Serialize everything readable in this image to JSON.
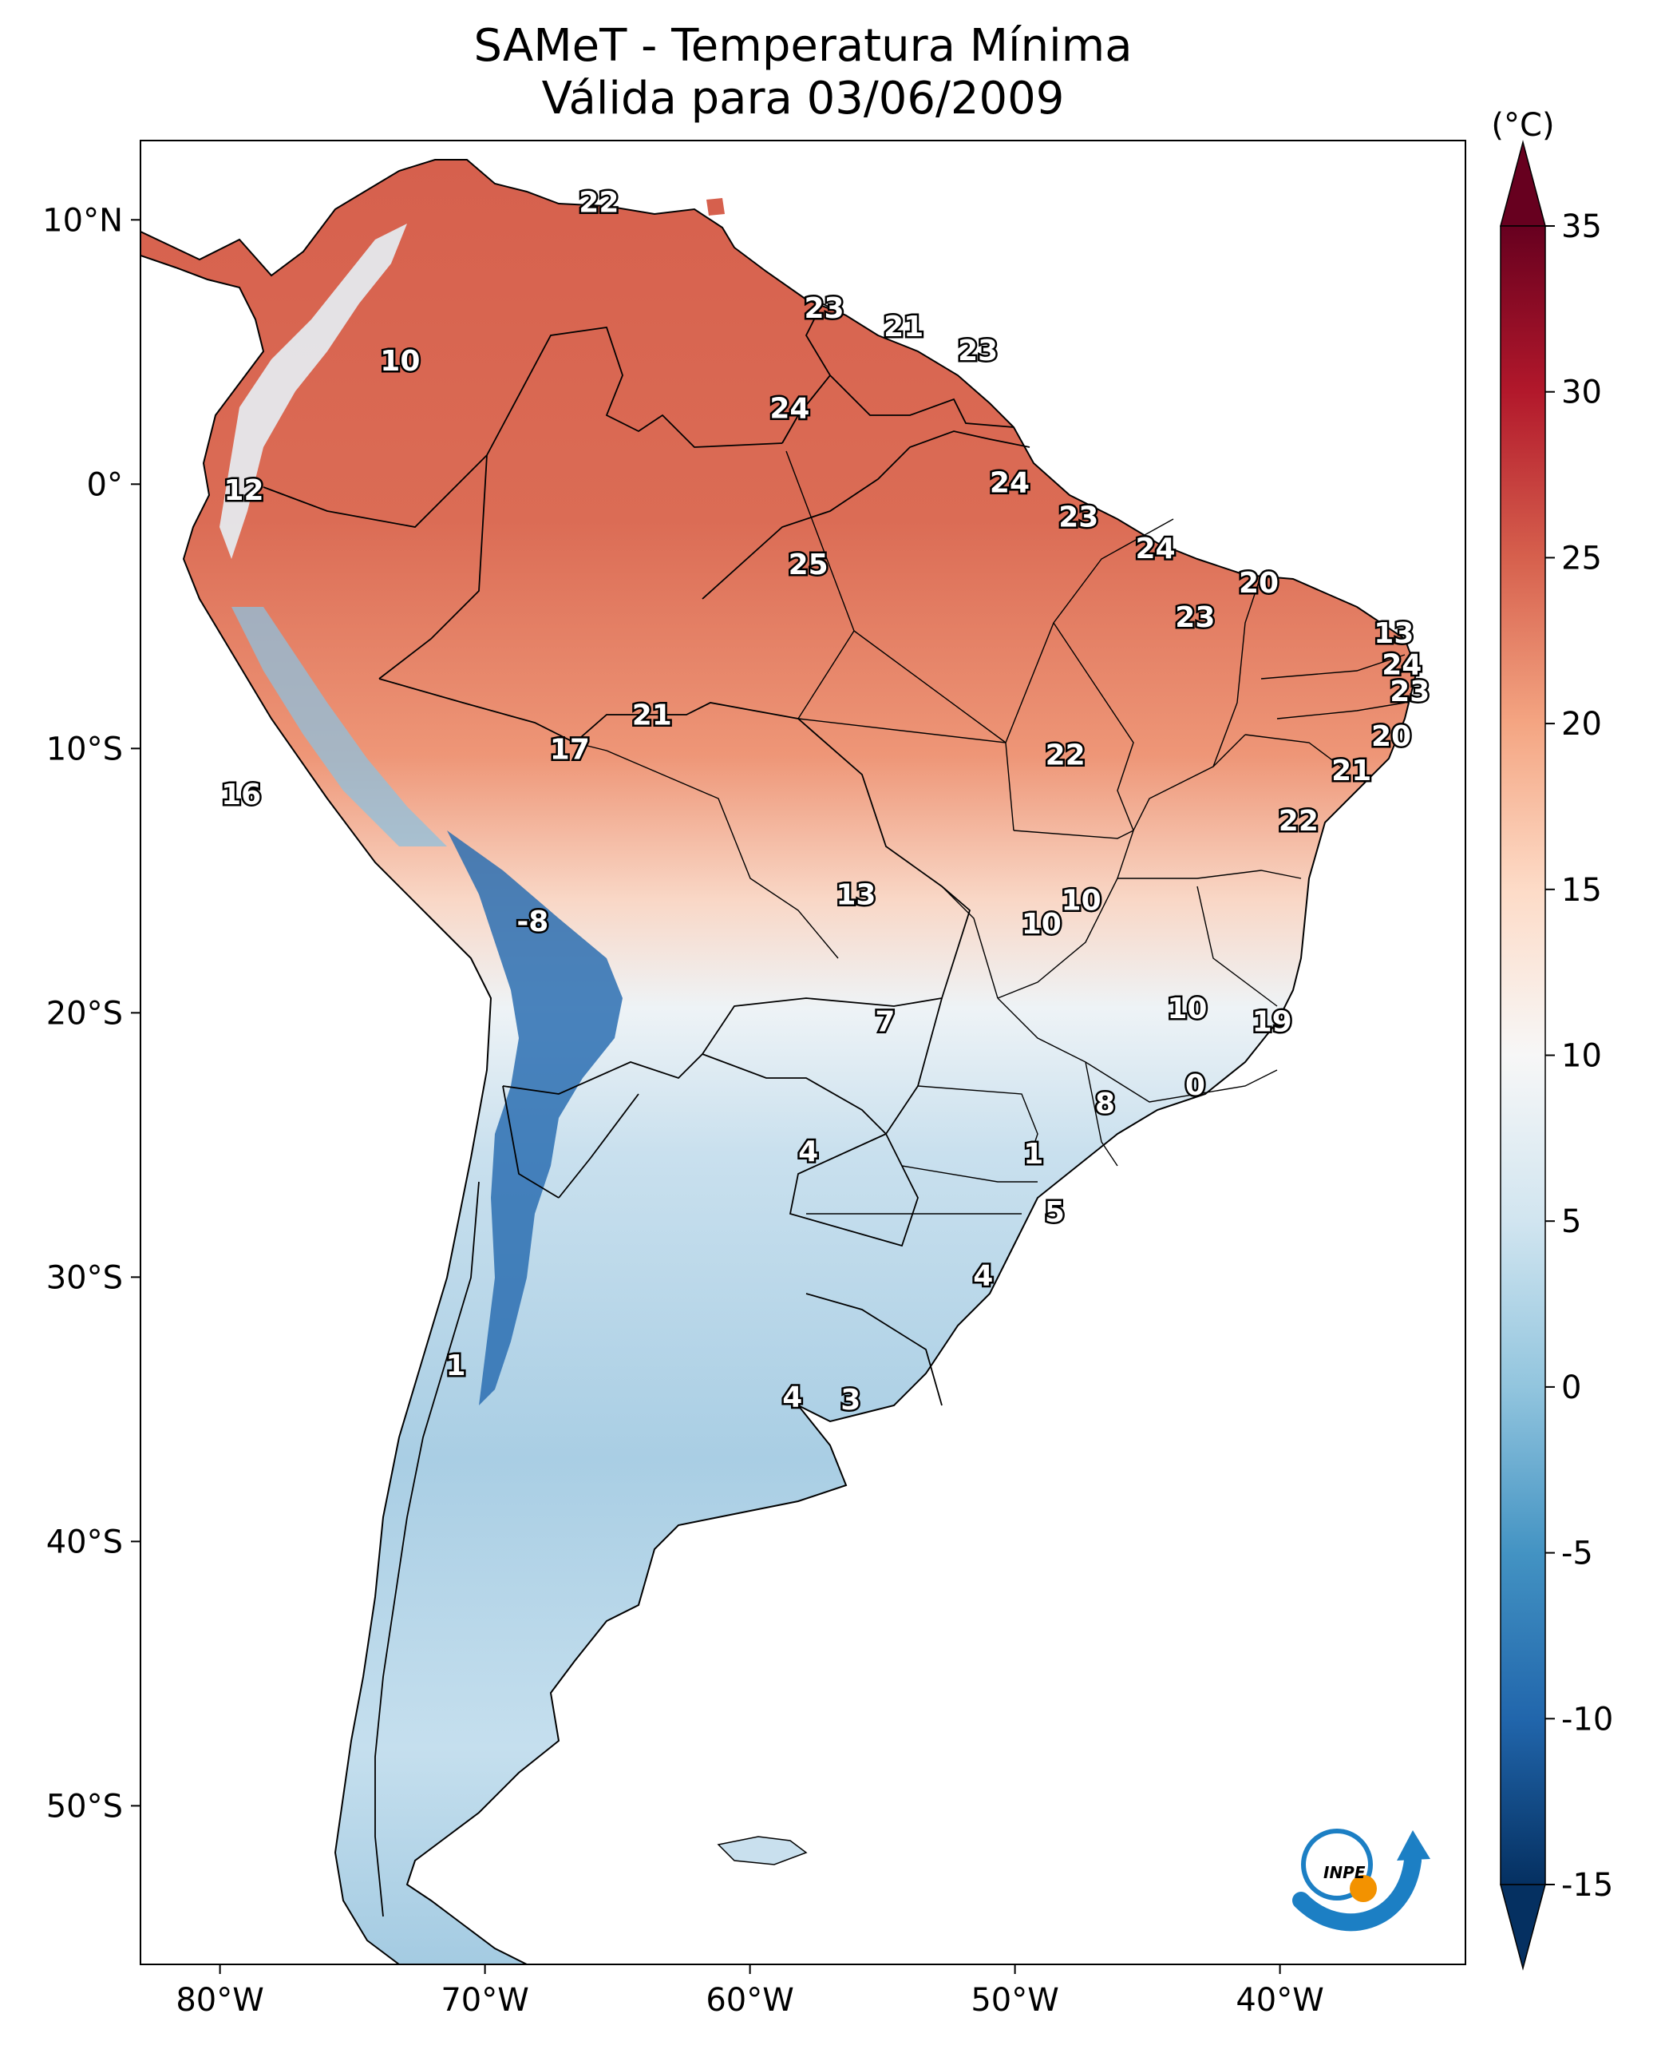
{
  "title": {
    "line1": "SAMeT - Temperatura Mínima",
    "line2": "Válida para 03/06/2009"
  },
  "map": {
    "lon_range": [
      -83,
      -33
    ],
    "lat_range": [
      -56,
      13
    ],
    "lon_ticks": [
      {
        "value": -80,
        "label": "80°W"
      },
      {
        "value": -70,
        "label": "70°W"
      },
      {
        "value": -60,
        "label": "60°W"
      },
      {
        "value": -50,
        "label": "50°W"
      },
      {
        "value": -40,
        "label": "40°W"
      }
    ],
    "lat_ticks": [
      {
        "value": 10,
        "label": "10°N"
      },
      {
        "value": 0,
        "label": "0°"
      },
      {
        "value": -10,
        "label": "10°S"
      },
      {
        "value": -20,
        "label": "20°S"
      },
      {
        "value": -30,
        "label": "30°S"
      },
      {
        "value": -40,
        "label": "40°S"
      },
      {
        "value": -50,
        "label": "50°S"
      }
    ],
    "station_labels": [
      {
        "lon": -65.7,
        "lat": 10.6,
        "text": "22"
      },
      {
        "lon": -73.2,
        "lat": 4.6,
        "text": "10"
      },
      {
        "lon": -57.2,
        "lat": 6.6,
        "text": "23"
      },
      {
        "lon": -54.2,
        "lat": 5.9,
        "text": "21"
      },
      {
        "lon": -51.4,
        "lat": 5.0,
        "text": "23"
      },
      {
        "lon": -58.5,
        "lat": 2.8,
        "text": "24"
      },
      {
        "lon": -79.1,
        "lat": -0.3,
        "text": "12"
      },
      {
        "lon": -50.2,
        "lat": 0.0,
        "text": "24"
      },
      {
        "lon": -47.6,
        "lat": -1.3,
        "text": "23"
      },
      {
        "lon": -44.7,
        "lat": -2.5,
        "text": "24"
      },
      {
        "lon": -40.8,
        "lat": -3.8,
        "text": "20"
      },
      {
        "lon": -57.8,
        "lat": -3.1,
        "text": "25"
      },
      {
        "lon": -43.2,
        "lat": -5.1,
        "text": "23"
      },
      {
        "lon": -35.7,
        "lat": -5.7,
        "text": "13"
      },
      {
        "lon": -35.4,
        "lat": -6.9,
        "text": "24"
      },
      {
        "lon": -35.1,
        "lat": -7.9,
        "text": "23"
      },
      {
        "lon": -63.7,
        "lat": -8.8,
        "text": "21"
      },
      {
        "lon": -35.8,
        "lat": -9.6,
        "text": "20"
      },
      {
        "lon": -66.8,
        "lat": -10.1,
        "text": "17"
      },
      {
        "lon": -48.1,
        "lat": -10.3,
        "text": "22"
      },
      {
        "lon": -37.3,
        "lat": -10.9,
        "text": "21"
      },
      {
        "lon": -79.2,
        "lat": -11.8,
        "text": "16"
      },
      {
        "lon": -39.3,
        "lat": -12.8,
        "text": "22"
      },
      {
        "lon": -56.0,
        "lat": -15.6,
        "text": "13"
      },
      {
        "lon": -47.5,
        "lat": -15.8,
        "text": "10"
      },
      {
        "lon": -49.0,
        "lat": -16.7,
        "text": "10"
      },
      {
        "lon": -68.2,
        "lat": -16.6,
        "text": "-8"
      },
      {
        "lon": -54.9,
        "lat": -20.4,
        "text": "7"
      },
      {
        "lon": -43.5,
        "lat": -19.9,
        "text": "10"
      },
      {
        "lon": -40.3,
        "lat": -20.4,
        "text": "19"
      },
      {
        "lon": -43.2,
        "lat": -22.8,
        "text": "0"
      },
      {
        "lon": -46.6,
        "lat": -23.5,
        "text": "8"
      },
      {
        "lon": -57.8,
        "lat": -25.3,
        "text": "4"
      },
      {
        "lon": -49.3,
        "lat": -25.4,
        "text": "1"
      },
      {
        "lon": -48.5,
        "lat": -27.6,
        "text": "5"
      },
      {
        "lon": -51.2,
        "lat": -30.0,
        "text": "4"
      },
      {
        "lon": -71.1,
        "lat": -33.4,
        "text": "1"
      },
      {
        "lon": -58.4,
        "lat": -34.6,
        "text": "4"
      },
      {
        "lon": -56.2,
        "lat": -34.7,
        "text": "3"
      }
    ]
  },
  "colorbar": {
    "unit": "(°C)",
    "min": -15,
    "max": 35,
    "ticks": [
      {
        "value": 35,
        "label": "35"
      },
      {
        "value": 30,
        "label": "30"
      },
      {
        "value": 25,
        "label": "25"
      },
      {
        "value": 20,
        "label": "20"
      },
      {
        "value": 15,
        "label": "15"
      },
      {
        "value": 10,
        "label": "10"
      },
      {
        "value": 5,
        "label": "5"
      },
      {
        "value": 0,
        "label": "0"
      },
      {
        "value": -5,
        "label": "-5"
      },
      {
        "value": -10,
        "label": "-10"
      },
      {
        "value": -15,
        "label": "-15"
      }
    ],
    "colors": [
      "#053061",
      "#2166ac",
      "#4393c3",
      "#92c5de",
      "#d1e5f0",
      "#f7f7f7",
      "#fddbc7",
      "#f4a582",
      "#d6604d",
      "#b2182b",
      "#67001f"
    ]
  },
  "logo": {
    "text": "INPE",
    "icon": "inpe-logo-icon",
    "colors": {
      "blue": "#1c7fc4",
      "orange": "#f39200"
    }
  }
}
